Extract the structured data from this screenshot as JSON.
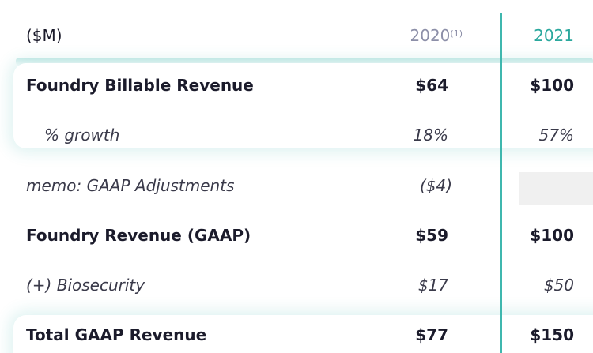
{
  "header": {
    "units_label": "($M)",
    "col_2020": "2020",
    "col_2020_note": "(1)",
    "col_2021": "2021"
  },
  "rows": [
    {
      "label": "Foundry Billable Revenue",
      "v2020": "$64",
      "v2021": "$100"
    },
    {
      "label": "% growth",
      "v2020": "18%",
      "v2021": "57%"
    },
    {
      "label": "memo: GAAP Adjustments",
      "v2020": "($4)",
      "v2021": ""
    },
    {
      "label": "Foundry Revenue (GAAP)",
      "v2020": "$59",
      "v2021": "$100"
    },
    {
      "label": "(+) Biosecurity",
      "v2020": "$17",
      "v2021": "$50"
    },
    {
      "label": "Total GAAP Revenue",
      "v2020": "$77",
      "v2021": "$150"
    }
  ],
  "colors": {
    "accent": "#2aa89d",
    "divider": "#3fb7ae",
    "header_muted": "#8c8fa8",
    "text": "#1b1b2b"
  }
}
